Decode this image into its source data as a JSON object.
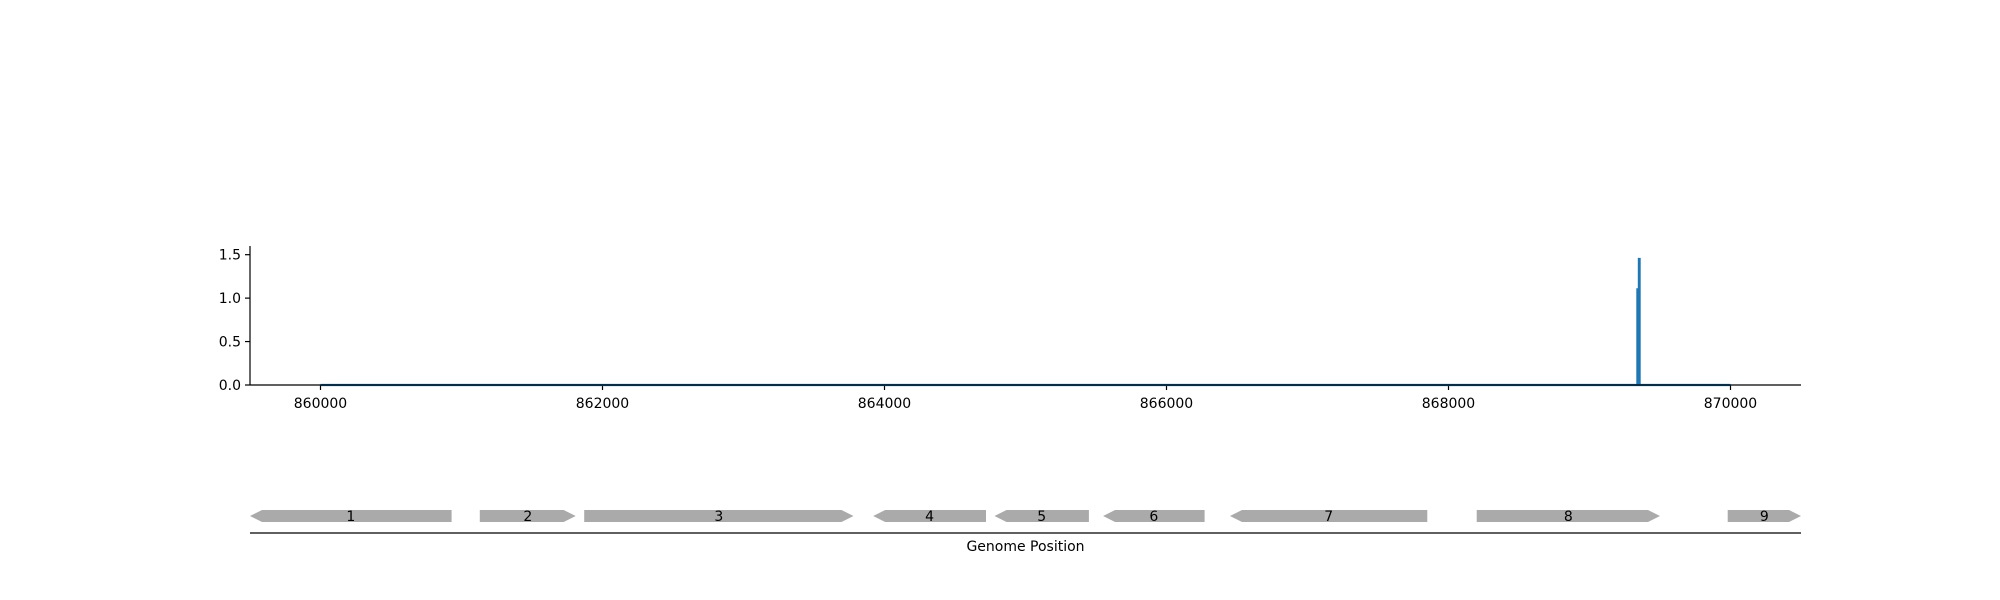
{
  "colors": {
    "line": "#1f77b4",
    "gene": "#aaaaaa",
    "axis": "#000000"
  },
  "chart_data": [
    {
      "type": "line",
      "title": "",
      "xlabel": "",
      "ylabel": "",
      "xlim": [
        859500,
        870500
      ],
      "ylim": [
        0,
        1.6
      ],
      "xticks": [
        860000,
        862000,
        864000,
        866000,
        868000,
        870000
      ],
      "xtick_labels": [
        "860000",
        "862000",
        "864000",
        "866000",
        "868000",
        "870000"
      ],
      "yticks": [
        0,
        0.5,
        1,
        1.5
      ],
      "ytick_labels": [
        "0.0",
        "0.5",
        "1.0",
        "1.5"
      ],
      "grid": false,
      "series": [
        {
          "x": [
            860000,
            869340,
            869340,
            869345,
            869345,
            869350,
            869350,
            869355,
            869355,
            869360,
            869360,
            870000
          ],
          "values": [
            0,
            0,
            1.1,
            1.1,
            0,
            0,
            1.45,
            1.45,
            0,
            0,
            0,
            0
          ]
        }
      ]
    },
    {
      "type": "gene-track",
      "xlabel": "Genome Position",
      "xlim": [
        859500,
        870500
      ],
      "genes": [
        {
          "label": "1",
          "start": 859500,
          "end": 860930,
          "strand": "-"
        },
        {
          "label": "2",
          "start": 861130,
          "end": 861810,
          "strand": "+"
        },
        {
          "label": "3",
          "start": 861870,
          "end": 863780,
          "strand": "+"
        },
        {
          "label": "4",
          "start": 863920,
          "end": 864720,
          "strand": "-"
        },
        {
          "label": "5",
          "start": 864780,
          "end": 865450,
          "strand": "-"
        },
        {
          "label": "6",
          "start": 865550,
          "end": 866270,
          "strand": "-"
        },
        {
          "label": "7",
          "start": 866450,
          "end": 867850,
          "strand": "-"
        },
        {
          "label": "8",
          "start": 868200,
          "end": 869500,
          "strand": "+"
        },
        {
          "label": "9",
          "start": 869980,
          "end": 870500,
          "strand": "+"
        }
      ]
    }
  ]
}
